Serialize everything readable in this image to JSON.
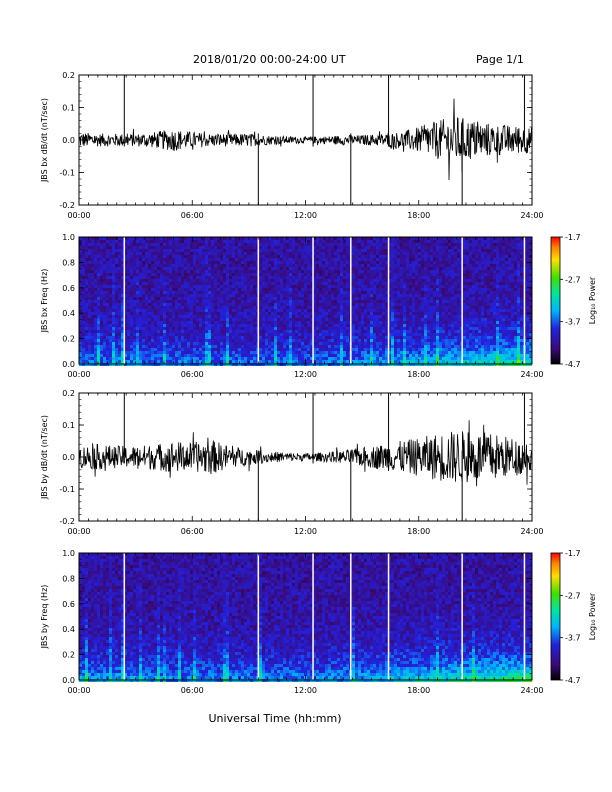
{
  "header": {
    "title": "2018/01/20  00:00-24:00 UT",
    "page": "Page 1/1"
  },
  "footer": {
    "xlabel": "Universal Time (hh:mm)"
  },
  "colorbar": {
    "ticks": [
      "-1.7",
      "-2.7",
      "-3.7",
      "-4.7"
    ],
    "title": "Log₁₀ Power"
  },
  "chart_data": [
    {
      "type": "line",
      "ylabel": "JBS bx dB/dt (nT/sec)",
      "xlim": [
        0,
        24
      ],
      "ylim": [
        -0.2,
        0.2
      ],
      "x_ticks": [
        "00:00",
        "06:00",
        "12:00",
        "18:00",
        "24:00"
      ],
      "y_ticks": [
        "0.2",
        "0.1",
        "0.0",
        "-0.1",
        "-0.2"
      ],
      "series": [
        {
          "hour": [
            0,
            1,
            2,
            3,
            4,
            5,
            6,
            7,
            8,
            9,
            10,
            11,
            12,
            13,
            14,
            15,
            16,
            17,
            18,
            19,
            20,
            21,
            22,
            23,
            24
          ],
          "amplitude": [
            0.025,
            0.02,
            0.02,
            0.02,
            0.025,
            0.035,
            0.025,
            0.02,
            0.02,
            0.02,
            0.015,
            0.012,
            0.01,
            0.012,
            0.015,
            0.015,
            0.02,
            0.025,
            0.04,
            0.06,
            0.075,
            0.06,
            0.05,
            0.045,
            0.04
          ]
        }
      ],
      "spikes_hour": [
        2.4,
        9.5,
        12.4,
        14.4,
        16.4,
        20.3,
        23.6
      ]
    },
    {
      "type": "heatmap",
      "ylabel": "JBS bx Freq (Hz)",
      "xlim": [
        0,
        24
      ],
      "ylim": [
        0,
        1.0
      ],
      "x_ticks": [
        "00:00",
        "06:00",
        "12:00",
        "18:00",
        "24:00"
      ],
      "y_ticks": [
        "1.0",
        "0.8",
        "0.6",
        "0.4",
        "0.2",
        "0.0"
      ],
      "z_range": [
        -4.7,
        -1.7
      ],
      "gap_lines_hour": [
        2.4,
        9.5,
        12.4,
        14.4,
        16.4,
        20.3,
        23.6
      ]
    },
    {
      "type": "line",
      "ylabel": "JBS by dB/dt (nT/sec)",
      "xlim": [
        0,
        24
      ],
      "ylim": [
        -0.2,
        0.2
      ],
      "x_ticks": [
        "00:00",
        "06:00",
        "12:00",
        "18:00",
        "24:00"
      ],
      "y_ticks": [
        "0.2",
        "0.1",
        "0.0",
        "-0.1",
        "-0.2"
      ],
      "series": [
        {
          "hour": [
            0,
            1,
            2,
            3,
            4,
            5,
            6,
            7,
            8,
            9,
            10,
            11,
            12,
            13,
            14,
            15,
            16,
            17,
            18,
            19,
            20,
            21,
            22,
            23,
            24
          ],
          "amplitude": [
            0.035,
            0.04,
            0.035,
            0.035,
            0.04,
            0.05,
            0.045,
            0.055,
            0.035,
            0.025,
            0.018,
            0.015,
            0.012,
            0.015,
            0.02,
            0.03,
            0.04,
            0.05,
            0.06,
            0.075,
            0.085,
            0.08,
            0.075,
            0.06,
            0.05
          ]
        }
      ],
      "spikes_hour": [
        2.4,
        9.5,
        12.4,
        14.4,
        16.4,
        20.3,
        23.6
      ]
    },
    {
      "type": "heatmap",
      "ylabel": "JBS by Freq (Hz)",
      "xlim": [
        0,
        24
      ],
      "ylim": [
        0,
        1.0
      ],
      "x_ticks": [
        "00:00",
        "06:00",
        "12:00",
        "18:00",
        "24:00"
      ],
      "y_ticks": [
        "1.0",
        "0.8",
        "0.6",
        "0.4",
        "0.2",
        "0.0"
      ],
      "z_range": [
        -4.7,
        -1.7
      ],
      "gap_lines_hour": [
        2.4,
        9.5,
        12.4,
        14.4,
        16.4,
        20.3,
        23.6
      ]
    }
  ]
}
